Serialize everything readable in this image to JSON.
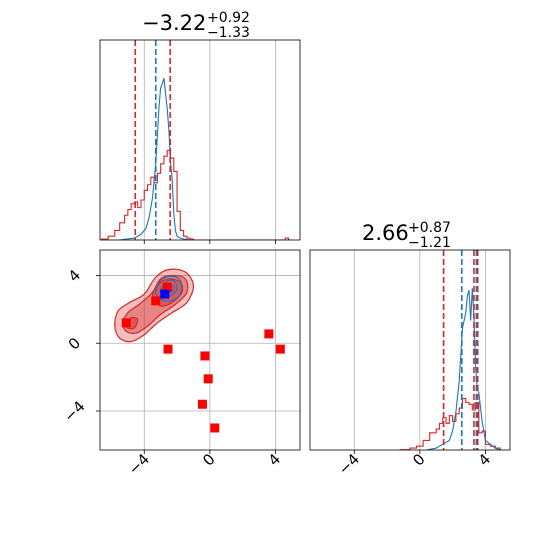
{
  "colors": {
    "red": "#d62728",
    "blue": "#1f77b4",
    "red_marker": "#ff0000",
    "blue_marker": "#0000ff",
    "grid": "#b0b0b0",
    "spine": "#000000"
  },
  "chart_data": [
    {
      "panel": "marginal-1",
      "type": "line",
      "title": {
        "value": "−3.22",
        "plus": "+0.92",
        "minus": "−1.33"
      },
      "xlim": [
        -6.7,
        5.5
      ],
      "ylim": [
        0,
        1.05
      ],
      "xticks": [
        -4,
        0,
        4
      ],
      "grid": true,
      "series": [
        {
          "color": "#d62728",
          "style": "step",
          "x": [
            -6.6,
            -6.2,
            -5.8,
            -5.5,
            -5.2,
            -5.0,
            -4.8,
            -4.6,
            -4.4,
            -4.2,
            -4.0,
            -3.8,
            -3.6,
            -3.4,
            -3.2,
            -3.0,
            -2.8,
            -2.6,
            -2.4,
            -2.2,
            -2.0,
            -1.8,
            -1.6,
            -1.4,
            -1.2,
            -1.0,
            4.6,
            4.8
          ],
          "y": [
            0.005,
            0.02,
            0.05,
            0.09,
            0.13,
            0.16,
            0.19,
            0.2,
            0.17,
            0.21,
            0.26,
            0.29,
            0.33,
            0.3,
            0.35,
            0.4,
            0.44,
            0.47,
            0.43,
            0.36,
            0.15,
            0.05,
            0.02,
            0.01,
            0.005,
            0.0,
            0.01,
            0.0
          ]
        },
        {
          "color": "#1f77b4",
          "style": "line",
          "x": [
            -5.5,
            -4.6,
            -4.2,
            -3.9,
            -3.7,
            -3.5,
            -3.3,
            -3.1,
            -3.0,
            -2.9,
            -2.8,
            -2.7,
            -2.6,
            -2.5,
            -2.4,
            -2.3,
            -2.2,
            -2.1,
            -2.0,
            -1.8,
            -1.6,
            -1.2
          ],
          "y": [
            0.0,
            0.01,
            0.03,
            0.06,
            0.12,
            0.22,
            0.4,
            0.7,
            0.8,
            0.82,
            0.85,
            0.77,
            0.69,
            0.58,
            0.41,
            0.32,
            0.14,
            0.05,
            0.02,
            0.01,
            0.005,
            0.0
          ]
        }
      ],
      "vlines": [
        {
          "x": -4.55,
          "color": "#d62728"
        },
        {
          "x": -2.42,
          "color": "#d62728"
        },
        {
          "x": -3.3,
          "color": "#1f77b4"
        }
      ]
    },
    {
      "panel": "marginal-2",
      "type": "line",
      "title": {
        "value": "2.66",
        "plus": "+0.87",
        "minus": "−1.21"
      },
      "xlim": [
        -6.7,
        5.5
      ],
      "ylim": [
        0,
        1.05
      ],
      "xticks": [
        -4,
        0,
        4
      ],
      "grid": true,
      "series": [
        {
          "color": "#d62728",
          "style": "step",
          "x": [
            -1.2,
            -0.6,
            -0.2,
            0.2,
            0.6,
            1.0,
            1.2,
            1.4,
            1.6,
            1.8,
            2.0,
            2.2,
            2.4,
            2.6,
            2.8,
            3.0,
            3.2,
            3.4,
            3.6,
            3.8,
            4.0,
            4.3,
            4.6,
            4.9
          ],
          "y": [
            0.002,
            0.01,
            0.02,
            0.05,
            0.09,
            0.11,
            0.14,
            0.17,
            0.14,
            0.18,
            0.15,
            0.19,
            0.22,
            0.27,
            0.25,
            0.24,
            0.21,
            0.25,
            0.09,
            0.1,
            0.03,
            0.02,
            0.01,
            0.0
          ]
        },
        {
          "color": "#1f77b4",
          "style": "line",
          "x": [
            0.4,
            1.0,
            1.4,
            1.8,
            2.0,
            2.2,
            2.4,
            2.6,
            2.7,
            2.8,
            2.9,
            3.0,
            3.1,
            3.2,
            3.3,
            3.4,
            3.5,
            3.6,
            3.8,
            4.0,
            4.3,
            4.6,
            4.9
          ],
          "y": [
            0.0,
            0.01,
            0.03,
            0.05,
            0.1,
            0.2,
            0.36,
            0.64,
            0.68,
            0.72,
            0.81,
            0.84,
            0.68,
            0.85,
            0.7,
            0.44,
            0.32,
            0.3,
            0.15,
            0.05,
            0.03,
            0.01,
            0.0
          ]
        }
      ],
      "vlines": [
        {
          "x": 1.45,
          "color": "#d62728"
        },
        {
          "x": 3.53,
          "color": "#d62728"
        },
        {
          "x": 3.3,
          "color": "#d62728"
        },
        {
          "x": 2.56,
          "color": "#1f77b4"
        },
        {
          "x": 3.45,
          "color": "#1f77b4"
        }
      ]
    },
    {
      "panel": "joint",
      "type": "scatter",
      "xlim": [
        -6.7,
        5.5
      ],
      "ylim": [
        -6.3,
        5.5
      ],
      "xticks": [
        -4,
        0,
        4
      ],
      "yticks": [
        -4,
        0,
        4
      ],
      "grid": true,
      "red_contours": [
        {
          "alpha": 0.55,
          "points": [
            [
              -5.8,
              1.0
            ],
            [
              -5.6,
              1.9
            ],
            [
              -4.9,
              2.4
            ],
            [
              -4.0,
              2.9
            ],
            [
              -3.3,
              3.9
            ],
            [
              -2.5,
              4.35
            ],
            [
              -1.5,
              4.2
            ],
            [
              -1.0,
              3.4
            ],
            [
              -1.4,
              2.4
            ],
            [
              -2.3,
              1.8
            ],
            [
              -3.2,
              1.2
            ],
            [
              -4.0,
              0.5
            ],
            [
              -4.8,
              0.1
            ],
            [
              -5.5,
              0.3
            ]
          ]
        },
        {
          "alpha": 0.7,
          "points": [
            [
              -5.3,
              1.2
            ],
            [
              -5.0,
              1.8
            ],
            [
              -4.3,
              2.3
            ],
            [
              -3.5,
              3.0
            ],
            [
              -3.0,
              3.8
            ],
            [
              -2.3,
              4.0
            ],
            [
              -1.5,
              3.8
            ],
            [
              -1.4,
              3.0
            ],
            [
              -2.1,
              2.3
            ],
            [
              -3.0,
              1.7
            ],
            [
              -3.8,
              1.0
            ],
            [
              -4.5,
              0.6
            ],
            [
              -5.1,
              0.7
            ]
          ]
        },
        {
          "alpha": 0.85,
          "points": [
            [
              -3.5,
              2.8
            ],
            [
              -3.1,
              3.5
            ],
            [
              -2.5,
              3.8
            ],
            [
              -1.8,
              3.6
            ],
            [
              -1.7,
              3.0
            ],
            [
              -2.3,
              2.4
            ],
            [
              -3.0,
              2.2
            ]
          ]
        },
        {
          "alpha": 0.85,
          "points": [
            [
              -5.1,
              1.1
            ],
            [
              -4.8,
              1.5
            ],
            [
              -4.4,
              1.4
            ],
            [
              -4.6,
              0.9
            ],
            [
              -5.0,
              0.9
            ]
          ]
        }
      ],
      "blue_contours": [
        [
          [
            -3.3,
            3.0
          ],
          [
            -3.0,
            3.7
          ],
          [
            -2.4,
            3.95
          ],
          [
            -1.8,
            3.7
          ],
          [
            -1.8,
            2.9
          ],
          [
            -2.4,
            2.5
          ],
          [
            -3.0,
            2.6
          ]
        ],
        [
          [
            -3.0,
            3.1
          ],
          [
            -2.7,
            3.6
          ],
          [
            -2.2,
            3.7
          ],
          [
            -2.0,
            3.2
          ],
          [
            -2.4,
            2.8
          ],
          [
            -2.8,
            2.8
          ]
        ],
        [
          [
            -2.8,
            3.2
          ],
          [
            -2.5,
            3.5
          ],
          [
            -2.2,
            3.3
          ],
          [
            -2.4,
            3.0
          ]
        ]
      ],
      "red_markers": [
        {
          "x": -5.1,
          "y": 1.2
        },
        {
          "x": -2.55,
          "y": -0.35
        },
        {
          "x": -0.3,
          "y": -0.75
        },
        {
          "x": -0.1,
          "y": -2.1
        },
        {
          "x": -0.45,
          "y": -3.6
        },
        {
          "x": 0.3,
          "y": -5.0
        },
        {
          "x": 3.6,
          "y": 0.55
        },
        {
          "x": 4.3,
          "y": -0.35
        },
        {
          "x": -3.3,
          "y": 2.5
        },
        {
          "x": -2.6,
          "y": 3.3
        }
      ],
      "blue_marker": {
        "x": -2.75,
        "y": 2.9
      },
      "blue_dashed_lines": {
        "x": -3.3,
        "y": 2.66
      }
    }
  ]
}
